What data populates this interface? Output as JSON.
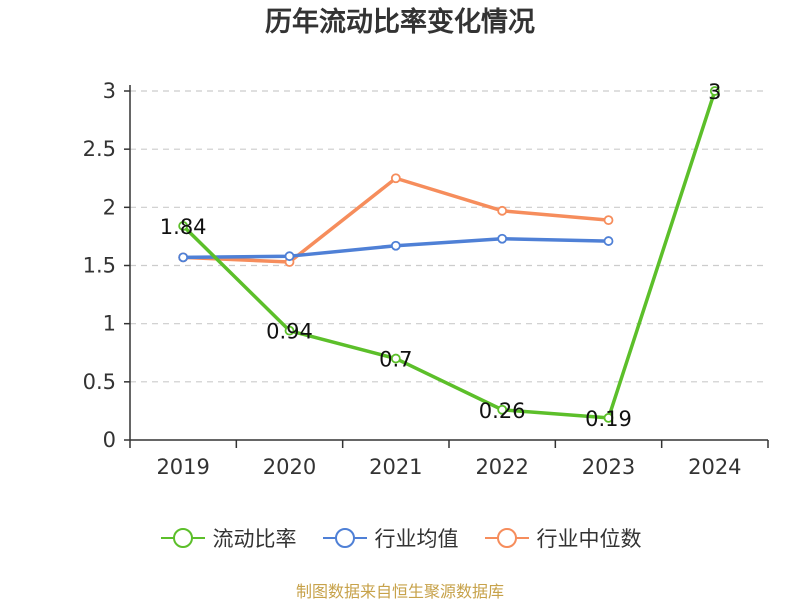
{
  "title": "历年流动比率变化情况",
  "source": "制图数据来自恒生聚源数据库",
  "chart_data": {
    "type": "line",
    "title": "历年流动比率变化情况",
    "categories": [
      "2019",
      "2020",
      "2021",
      "2022",
      "2023",
      "2024"
    ],
    "ylim": [
      0,
      3
    ],
    "yticks": [
      0,
      0.5,
      1,
      1.5,
      2,
      2.5,
      3
    ],
    "ytick_labels": [
      "0",
      "0.5",
      "1",
      "1.5",
      "2",
      "2.5",
      "3"
    ],
    "grid": true,
    "legend_position": "bottom",
    "series": [
      {
        "name": "流动比率",
        "color": "#5cbf2a",
        "values": [
          1.84,
          0.94,
          0.7,
          0.26,
          0.19,
          3
        ],
        "labels": [
          "1.84",
          "0.94",
          "0.7",
          "0.26",
          "0.19",
          "3"
        ]
      },
      {
        "name": "行业均值",
        "color": "#4f80d6",
        "values": [
          1.57,
          1.58,
          1.67,
          1.73,
          1.71,
          null
        ]
      },
      {
        "name": "行业中位数",
        "color": "#f68d5c",
        "values": [
          1.57,
          1.53,
          2.25,
          1.97,
          1.89,
          null
        ]
      }
    ]
  }
}
